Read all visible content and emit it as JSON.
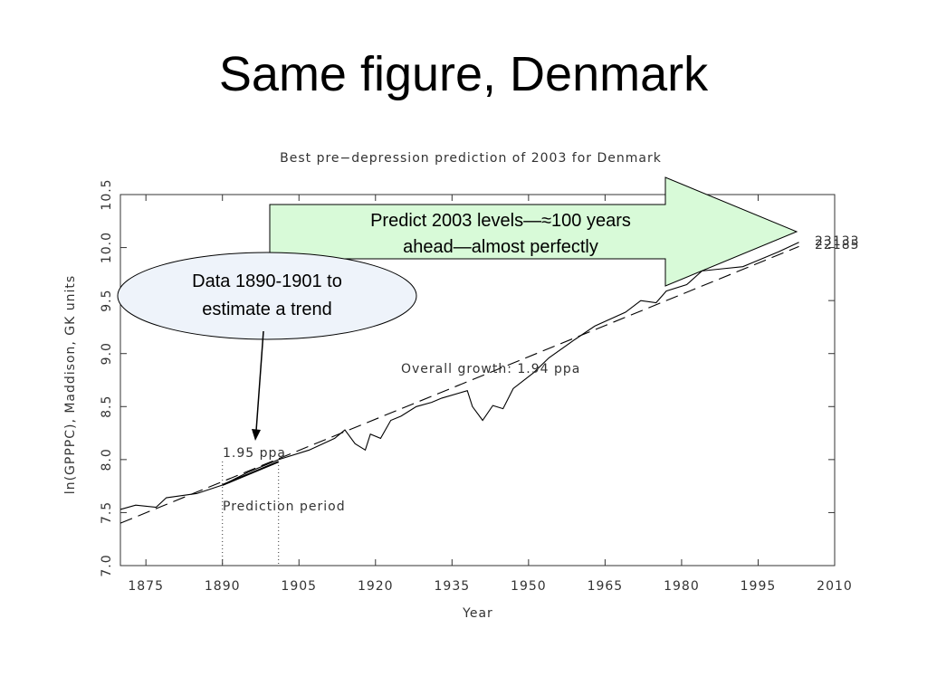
{
  "slide": {
    "title": "Same figure, Denmark"
  },
  "callouts": {
    "arrow_text": [
      "Predict 2003 levels—≈100 years",
      "ahead—almost perfectly"
    ],
    "ellipse_text": [
      "Data 1890-1901 to",
      "estimate a trend"
    ]
  },
  "chart_data": {
    "type": "line",
    "title": "Best pre−depression prediction of 2003 for Denmark",
    "xlabel": "Year",
    "ylabel": "ln(GPPPC), Maddison, GK units",
    "xlim": [
      1870,
      2010
    ],
    "xticks": [
      1875,
      1890,
      1905,
      1920,
      1935,
      1950,
      1965,
      1980,
      1995,
      2010
    ],
    "ylim": [
      7,
      10.5
    ],
    "yticks": [
      {
        "value": 7,
        "label": "7.0"
      },
      {
        "value": 7.5,
        "label": "7.5"
      },
      {
        "value": 8,
        "label": "8.0"
      },
      {
        "value": 8.5,
        "label": "8.5"
      },
      {
        "value": 9,
        "label": "9.0"
      },
      {
        "value": 9.5,
        "label": "9.5"
      },
      {
        "value": 10,
        "label": "10.0"
      },
      {
        "value": 10.5,
        "label": "10.5"
      }
    ],
    "series": [
      {
        "color": "#000000",
        "x": [
          1870,
          1873,
          1877,
          1879,
          1885,
          1890,
          1895,
          1901,
          1907,
          1912,
          1914,
          1916,
          1918,
          1919,
          1921,
          1923,
          1925,
          1928,
          1931,
          1933,
          1938,
          1939,
          1941,
          1943,
          1945,
          1947,
          1951,
          1954,
          1959,
          1963,
          1969,
          1972,
          1975,
          1977,
          1981,
          1984,
          1988,
          1992,
          1994,
          1999,
          2003
        ],
        "values": [
          7.53,
          7.57,
          7.55,
          7.64,
          7.68,
          7.76,
          7.88,
          8.0,
          8.09,
          8.2,
          8.28,
          8.15,
          8.09,
          8.24,
          8.2,
          8.37,
          8.41,
          8.5,
          8.54,
          8.58,
          8.65,
          8.5,
          8.37,
          8.51,
          8.48,
          8.67,
          8.82,
          8.96,
          9.13,
          9.26,
          9.39,
          9.5,
          9.48,
          9.59,
          9.65,
          9.78,
          9.8,
          9.82,
          9.86,
          9.96,
          10.05
        ]
      },
      {
        "name": "Overall growth: 1.94 ppa",
        "color": "#000000",
        "dash": true,
        "x": [
          1870,
          2003
        ],
        "values": [
          7.4,
          10.01
        ]
      },
      {
        "name": "1.95 ppa",
        "color": "#000000",
        "x": [
          1890,
          1901
        ],
        "values": [
          7.76,
          7.98
        ]
      }
    ],
    "prediction_period": {
      "label": "Prediction period",
      "years": [
        1890,
        1901
      ]
    },
    "end_labels": [
      "23133",
      "22185"
    ]
  }
}
